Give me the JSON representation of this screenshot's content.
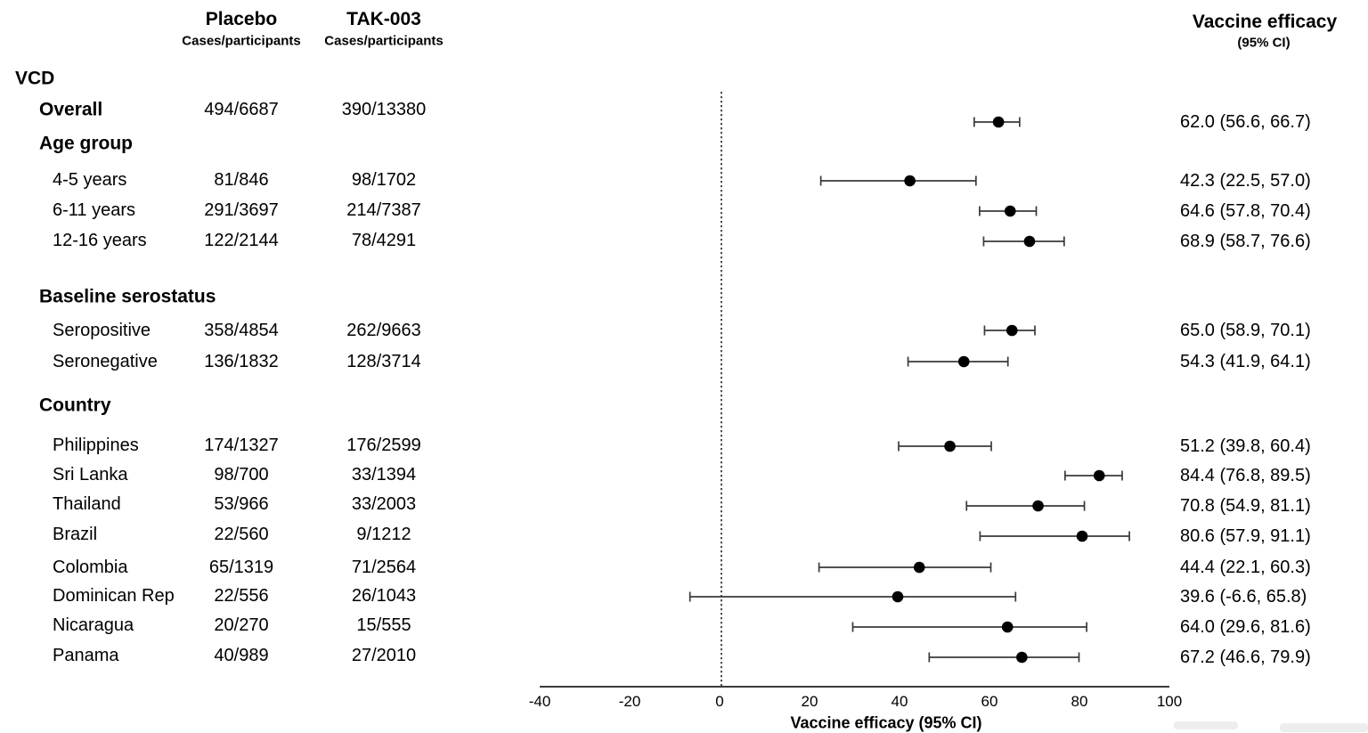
{
  "header": {
    "placebo_title": "Placebo",
    "placebo_subtitle": "Cases/participants",
    "tak003_title": "TAK-003",
    "tak003_subtitle": "Cases/participants",
    "efficacy_title": "Vaccine efficacy",
    "efficacy_subtitle": "(95% CI)"
  },
  "colors": {
    "background": "#ffffff",
    "ink": "#000000",
    "plot_line": "#3a3a3a",
    "point_fill": "#000000"
  },
  "chart_data": {
    "type": "forest",
    "title": "",
    "x_axis": {
      "label": "Vaccine efficacy (95% CI)",
      "ticks": [
        -40,
        -20,
        0,
        20,
        40,
        60,
        80,
        100
      ],
      "range": [
        -40,
        100
      ],
      "reference_line": 0,
      "grid": false
    },
    "columns": {
      "group": "",
      "placebo": "Placebo Cases/participants",
      "tak003": "TAK-003 Cases/participants",
      "efficacy": "Vaccine efficacy (95% CI)"
    },
    "rows": [
      {
        "label": "VCD",
        "bold": true,
        "indent": 0
      },
      {
        "label": "Overall",
        "bold": true,
        "indent": 1,
        "placebo": "494/6687",
        "tak003": "390/13380",
        "ve": 62.0,
        "lo": 56.6,
        "hi": 66.7,
        "ve_text": "62.0 (56.6, 66.7)"
      },
      {
        "label": "Age group",
        "bold": true,
        "indent": 1
      },
      {
        "label": "4-5 years",
        "bold": false,
        "indent": 2,
        "placebo": "81/846",
        "tak003": "98/1702",
        "ve": 42.3,
        "lo": 22.5,
        "hi": 57.0,
        "ve_text": "42.3 (22.5, 57.0)"
      },
      {
        "label": "6-11 years",
        "bold": false,
        "indent": 2,
        "placebo": "291/3697",
        "tak003": "214/7387",
        "ve": 64.6,
        "lo": 57.8,
        "hi": 70.4,
        "ve_text": "64.6 (57.8, 70.4)"
      },
      {
        "label": "12-16 years",
        "bold": false,
        "indent": 2,
        "placebo": "122/2144",
        "tak003": "78/4291",
        "ve": 68.9,
        "lo": 58.7,
        "hi": 76.6,
        "ve_text": "68.9 (58.7, 76.6)"
      },
      {
        "label": "Baseline serostatus",
        "bold": true,
        "indent": 1
      },
      {
        "label": "Seropositive",
        "bold": false,
        "indent": 2,
        "placebo": "358/4854",
        "tak003": "262/9663",
        "ve": 65.0,
        "lo": 58.9,
        "hi": 70.1,
        "ve_text": "65.0 (58.9, 70.1)"
      },
      {
        "label": "Seronegative",
        "bold": false,
        "indent": 2,
        "placebo": "136/1832",
        "tak003": "128/3714",
        "ve": 54.3,
        "lo": 41.9,
        "hi": 64.1,
        "ve_text": "54.3 (41.9, 64.1)"
      },
      {
        "label": "Country",
        "bold": true,
        "indent": 1
      },
      {
        "label": "Philippines",
        "bold": false,
        "indent": 2,
        "placebo": "174/1327",
        "tak003": "176/2599",
        "ve": 51.2,
        "lo": 39.8,
        "hi": 60.4,
        "ve_text": "51.2 (39.8, 60.4)"
      },
      {
        "label": "Sri Lanka",
        "bold": false,
        "indent": 2,
        "placebo": "98/700",
        "tak003": "33/1394",
        "ve": 84.4,
        "lo": 76.8,
        "hi": 89.5,
        "ve_text": "84.4 (76.8, 89.5)"
      },
      {
        "label": "Thailand",
        "bold": false,
        "indent": 2,
        "placebo": "53/966",
        "tak003": "33/2003",
        "ve": 70.8,
        "lo": 54.9,
        "hi": 81.1,
        "ve_text": "70.8 (54.9, 81.1)"
      },
      {
        "label": "Brazil",
        "bold": false,
        "indent": 2,
        "placebo": "22/560",
        "tak003": "9/1212",
        "ve": 80.6,
        "lo": 57.9,
        "hi": 91.1,
        "ve_text": "80.6 (57.9, 91.1)"
      },
      {
        "label": "Colombia",
        "bold": false,
        "indent": 2,
        "placebo": "65/1319",
        "tak003": "71/2564",
        "ve": 44.4,
        "lo": 22.1,
        "hi": 60.3,
        "ve_text": "44.4 (22.1, 60.3)"
      },
      {
        "label": "Dominican Rep",
        "bold": false,
        "indent": 2,
        "placebo": "22/556",
        "tak003": "26/1043",
        "ve": 39.6,
        "lo": -6.6,
        "hi": 65.8,
        "ve_text": "39.6 (-6.6, 65.8)"
      },
      {
        "label": "Nicaragua",
        "bold": false,
        "indent": 2,
        "placebo": "20/270",
        "tak003": "15/555",
        "ve": 64.0,
        "lo": 29.6,
        "hi": 81.6,
        "ve_text": "64.0 (29.6, 81.6)"
      },
      {
        "label": "Panama",
        "bold": false,
        "indent": 2,
        "placebo": "40/989",
        "tak003": "27/2010",
        "ve": 67.2,
        "lo": 46.6,
        "hi": 79.9,
        "ve_text": "67.2 (46.6, 79.9)"
      }
    ]
  }
}
